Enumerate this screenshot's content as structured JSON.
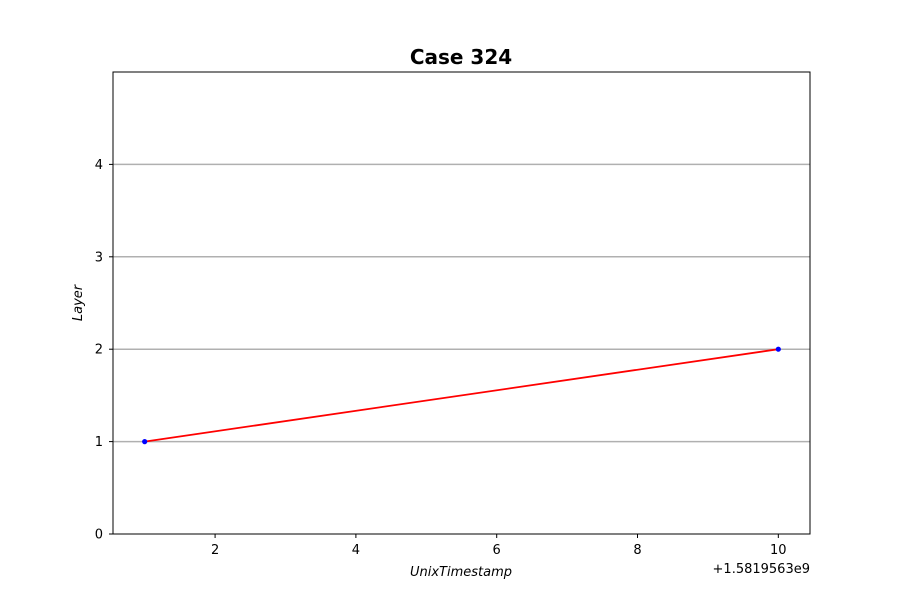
{
  "chart_data": {
    "type": "line",
    "title": "Case 324",
    "xlabel": "UnixTimestamp",
    "ylabel": "Layer",
    "x_offset_label": "+1.5819563e9",
    "x_ticks": [
      "2",
      "4",
      "6",
      "8",
      "10"
    ],
    "y_ticks": [
      "0",
      "1",
      "2",
      "3",
      "4"
    ],
    "xlim": [
      0.55,
      10.45
    ],
    "ylim": [
      0,
      5
    ],
    "grid": "horizontal",
    "series": [
      {
        "x": [
          1,
          10
        ],
        "y": [
          1,
          2
        ],
        "line_color": "#ff0000",
        "marker_color": "#0000ff"
      }
    ],
    "colors": {
      "grid": "#b0b0b0",
      "axes": "#000000"
    }
  }
}
